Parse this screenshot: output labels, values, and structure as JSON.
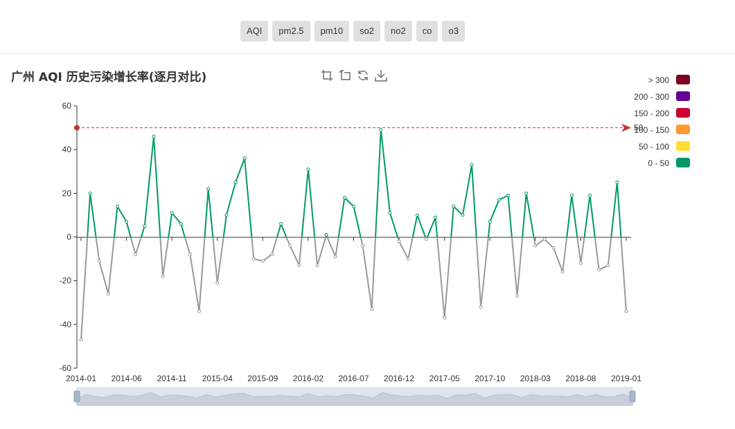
{
  "tabs": [
    "AQI",
    "pm2.5",
    "pm10",
    "so2",
    "no2",
    "co",
    "o3"
  ],
  "title": "广州 AQI 历史污染增长率(逐月对比)",
  "toolbox": [
    "zoom-icon",
    "zoom-reset-icon",
    "restore-icon",
    "download-icon"
  ],
  "legend": [
    {
      "label": "> 300",
      "color": "#7e0023"
    },
    {
      "label": "200 - 300",
      "color": "#660099"
    },
    {
      "label": "150 - 200",
      "color": "#cc0033"
    },
    {
      "label": "100 - 150",
      "color": "#ff9933"
    },
    {
      "label": "50 - 100",
      "color": "#ffde33"
    },
    {
      "label": "0 - 50",
      "color": "#009966"
    }
  ],
  "chart_data": {
    "type": "line",
    "title": "广州 AQI 历史污染增长率(逐月对比)",
    "xlabel": "",
    "ylabel": "",
    "ylim": [
      -60,
      60
    ],
    "yticks": [
      -60,
      -40,
      -20,
      0,
      20,
      40,
      60
    ],
    "x_tick_labels": [
      "2014-01",
      "2014-06",
      "2014-11",
      "2015-04",
      "2015-09",
      "2016-02",
      "2016-07",
      "2016-12",
      "2017-05",
      "2017-10",
      "2018-03",
      "2018-08",
      "2019-01"
    ],
    "x": [
      "2014-01",
      "2014-02",
      "2014-03",
      "2014-04",
      "2014-05",
      "2014-06",
      "2014-07",
      "2014-08",
      "2014-09",
      "2014-10",
      "2014-11",
      "2014-12",
      "2015-01",
      "2015-02",
      "2015-03",
      "2015-04",
      "2015-05",
      "2015-06",
      "2015-07",
      "2015-08",
      "2015-09",
      "2015-10",
      "2015-11",
      "2015-12",
      "2016-01",
      "2016-02",
      "2016-03",
      "2016-04",
      "2016-05",
      "2016-06",
      "2016-07",
      "2016-08",
      "2016-09",
      "2016-10",
      "2016-11",
      "2016-12",
      "2017-01",
      "2017-02",
      "2017-03",
      "2017-04",
      "2017-05",
      "2017-06",
      "2017-07",
      "2017-08",
      "2017-09",
      "2017-10",
      "2017-11",
      "2017-12",
      "2018-01",
      "2018-02",
      "2018-03",
      "2018-04",
      "2018-05",
      "2018-06",
      "2018-07",
      "2018-08",
      "2018-09",
      "2018-10",
      "2018-11",
      "2018-12",
      "2019-01"
    ],
    "values": [
      -47,
      20,
      -11,
      -26,
      14,
      7,
      -8,
      5,
      46,
      -18,
      11,
      6,
      -8,
      -34,
      22,
      -21,
      10,
      25,
      36,
      -10,
      -11,
      -8,
      6,
      -4,
      -13,
      31,
      -13,
      1,
      -9,
      18,
      14,
      -4,
      -33,
      49,
      11,
      -2,
      -10,
      10,
      -1,
      9,
      -37,
      14,
      10,
      33,
      -32,
      7,
      17,
      19,
      -27,
      20,
      -4,
      -1,
      -5,
      -16,
      19,
      -12,
      19,
      -15,
      -13,
      25,
      -34
    ],
    "series_color_positive": "#009966",
    "series_color_negative": "#999999",
    "mark_line": {
      "value": 50,
      "color": "#c23531"
    },
    "grid": false,
    "legend_position": "right"
  }
}
